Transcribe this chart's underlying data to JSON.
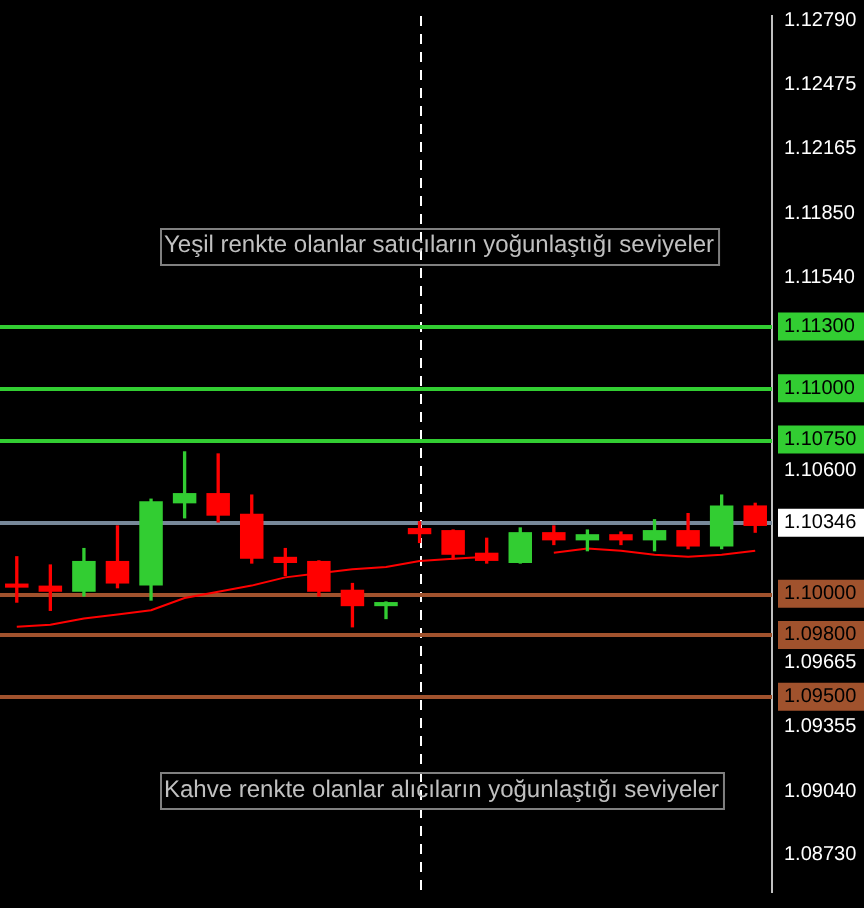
{
  "chart_data": {
    "type": "candlestick",
    "categories": [
      null,
      null,
      null,
      null,
      null,
      null,
      null,
      null,
      null,
      null,
      null,
      null,
      null,
      null,
      null,
      null,
      null,
      null,
      null,
      null,
      null,
      null,
      null
    ],
    "ohlc": [
      [
        1.1005,
        1.1018,
        1.0996,
        1.1003
      ],
      [
        1.1004,
        1.1014,
        1.0992,
        1.1001
      ],
      [
        1.1001,
        1.1022,
        1.0999,
        1.1016
      ],
      [
        1.1016,
        1.1033,
        1.1003,
        1.1005
      ],
      [
        1.1004,
        1.1046,
        1.0997,
        1.1045
      ],
      [
        1.1044,
        1.1069,
        1.1037,
        1.1049
      ],
      [
        1.1049,
        1.1068,
        1.1035,
        1.1038
      ],
      [
        1.1039,
        1.1048,
        1.1015,
        1.1017
      ],
      [
        1.1018,
        1.1022,
        1.1009,
        1.1015
      ],
      [
        1.1016,
        1.1016,
        1.0999,
        1.1001
      ],
      [
        1.1002,
        1.1005,
        1.0984,
        1.0994
      ],
      [
        1.0994,
        1.0996,
        1.0988,
        1.0996
      ],
      [
        1.1032,
        1.1035,
        1.1025,
        1.1029
      ],
      [
        1.1031,
        1.1031,
        1.1017,
        1.1019
      ],
      [
        1.102,
        1.1027,
        1.1015,
        1.1016
      ],
      [
        1.1015,
        1.1032,
        1.1015,
        1.103
      ],
      [
        1.103,
        1.1033,
        1.1024,
        1.1026
      ],
      [
        1.1026,
        1.1031,
        1.1021,
        1.1029
      ],
      [
        1.1029,
        1.103,
        1.1024,
        1.1026
      ],
      [
        1.1026,
        1.1036,
        1.1021,
        1.1031
      ],
      [
        1.1031,
        1.1039,
        1.1022,
        1.1023
      ],
      [
        1.1023,
        1.1048,
        1.1022,
        1.1043
      ],
      [
        1.1043,
        1.1044,
        1.103,
        1.1033
      ]
    ],
    "colors": [
      "#ff0000",
      "#ff0000",
      "#32cd32",
      "#ff0000",
      "#32cd32",
      "#32cd32",
      "#ff0000",
      "#ff0000",
      "#ff0000",
      "#ff0000",
      "#ff0000",
      "#32cd32",
      "#ff0000",
      "#ff0000",
      "#ff0000",
      "#32cd32",
      "#ff0000",
      "#32cd32",
      "#ff0000",
      "#32cd32",
      "#ff0000",
      "#32cd32",
      "#ff0000"
    ],
    "series": [
      {
        "type": "line",
        "color": "#ff0000",
        "values": [
          1.0984,
          1.0985,
          1.0988,
          1.099,
          1.0992,
          1.0998,
          1.1001,
          1.1004,
          1.1008,
          1.101,
          1.1012,
          1.1013,
          1.1016,
          1.1017,
          1.1018,
          null,
          1.102,
          1.1022,
          1.1021,
          1.1019,
          1.1018,
          1.1019,
          1.1021
        ]
      }
    ],
    "ylim": [
      1.0855,
      1.1281
    ],
    "yticks": [
      {
        "value": 1.1279,
        "label": "1.12790"
      },
      {
        "value": 1.12475,
        "label": "1.12475"
      },
      {
        "value": 1.12165,
        "label": "1.12165"
      },
      {
        "value": 1.1185,
        "label": "1.11850"
      },
      {
        "value": 1.1154,
        "label": "1.11540"
      },
      {
        "value": 1.106,
        "label": "1.10600"
      },
      {
        "value": 1.09665,
        "label": "1.09665"
      },
      {
        "value": 1.09355,
        "label": "1.09355"
      },
      {
        "value": 1.0904,
        "label": "1.09040"
      },
      {
        "value": 1.0873,
        "label": "1.08730"
      }
    ],
    "tick_labels": "y",
    "ref_lines": [
      {
        "axis": "y",
        "value": 1.113,
        "label": "1.11300",
        "color": "#32cd32"
      },
      {
        "axis": "y",
        "value": 1.11,
        "label": "1.11000",
        "color": "#32cd32"
      },
      {
        "axis": "y",
        "value": 1.1075,
        "label": "1.10750",
        "color": "#32cd32"
      },
      {
        "axis": "y",
        "value": 1.10346,
        "label": "1.10346",
        "color": "#778899"
      },
      {
        "axis": "y",
        "value": 1.1,
        "label": "1.10000",
        "color": "#a0522d"
      },
      {
        "axis": "y",
        "value": 1.098,
        "label": "1.09800",
        "color": "#a0522d"
      },
      {
        "axis": "y",
        "value": 1.095,
        "label": "1.09500",
        "color": "#a0522d"
      }
    ],
    "annotations": [
      "Yeşil renkte olanlar satıcıların yoğunlaştığı seviyeler",
      "Kahve renkte olanlar alıcıların yoğunlaştığı seviyeler"
    ]
  }
}
